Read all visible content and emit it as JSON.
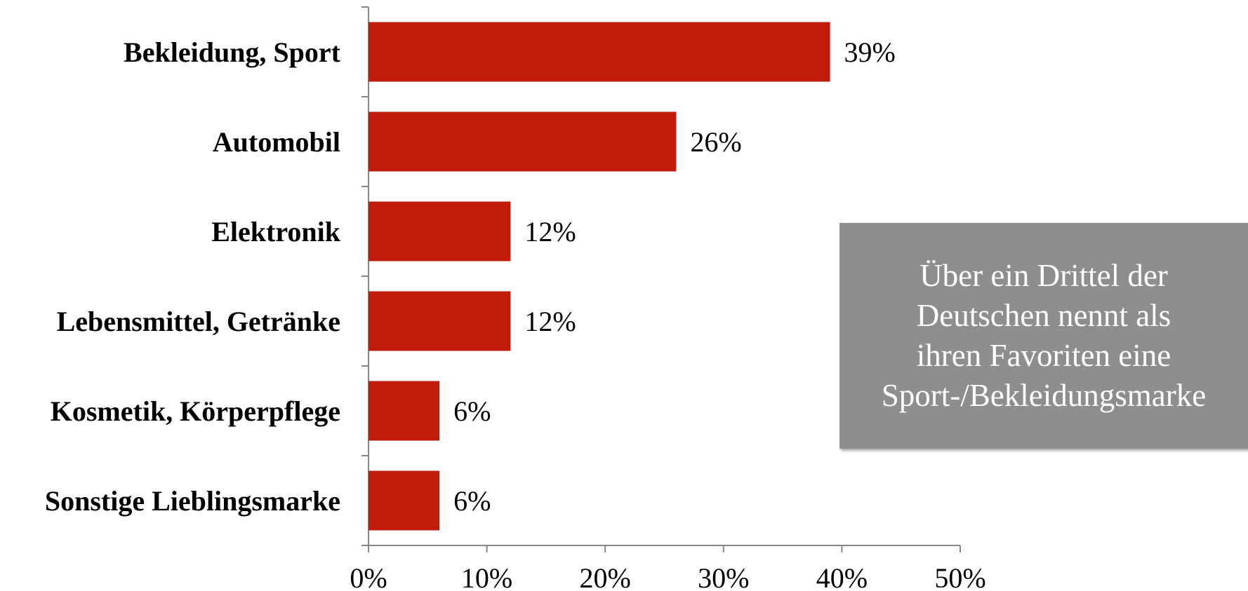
{
  "chart_data": {
    "type": "bar",
    "orientation": "horizontal",
    "categories": [
      "Bekleidung, Sport",
      "Automobil",
      "Elektronik",
      "Lebensmittel, Getränke",
      "Kosmetik, Körperpflege",
      "Sonstige Lieblingsmarke"
    ],
    "values": [
      39,
      26,
      12,
      12,
      6,
      6
    ],
    "value_labels": [
      "39%",
      "26%",
      "12%",
      "12%",
      "6%",
      "6%"
    ],
    "xlim": [
      0,
      50
    ],
    "x_ticks": [
      0,
      10,
      20,
      30,
      40,
      50
    ],
    "x_tick_labels": [
      "0%",
      "10%",
      "20%",
      "30%",
      "40%",
      "50%"
    ],
    "title": "",
    "xlabel": "",
    "ylabel": "",
    "grid": false,
    "bar_color": "#C11B0B",
    "axis_color": "#888888"
  },
  "callout": {
    "lines": [
      "Über ein Drittel der",
      "Deutschen nennt als",
      "ihren Favoriten eine",
      "Sport-/Bekleidungsmarke"
    ],
    "background": "#8E8E8E",
    "text_color": "#FFFFFF"
  }
}
